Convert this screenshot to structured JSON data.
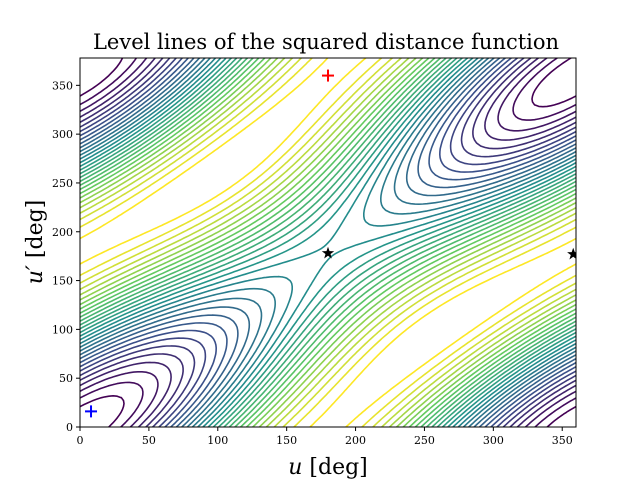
{
  "chart_data": {
    "type": "contour",
    "title": "Level lines of the squared distance function",
    "xlabel": "u [deg]",
    "ylabel": "u′ [deg]",
    "xlabel_parts": {
      "var": "u",
      "unit": " [deg]"
    },
    "ylabel_parts": {
      "var": "u′",
      "unit": " [deg]"
    },
    "xlim": [
      0,
      360
    ],
    "ylim": [
      0,
      378
    ],
    "xticks": [
      0,
      50,
      100,
      150,
      200,
      250,
      300,
      350
    ],
    "yticks": [
      0,
      50,
      100,
      150,
      200,
      250,
      300,
      350
    ],
    "grid": false,
    "colormap": [
      "#440154",
      "#3b528b",
      "#21918c",
      "#5ec962",
      "#fde725"
    ],
    "markers": [
      {
        "name": "red-plus",
        "shape": "plus",
        "color": "#ff0000",
        "x": 180,
        "y": 360
      },
      {
        "name": "blue-plus",
        "shape": "plus",
        "color": "#0000ff",
        "x": 8,
        "y": 16
      },
      {
        "name": "black-star-center",
        "shape": "star",
        "color": "#000000",
        "x": 180,
        "y": 178
      },
      {
        "name": "black-star-edge",
        "shape": "star",
        "color": "#000000",
        "x": 358,
        "y": 177
      }
    ]
  }
}
